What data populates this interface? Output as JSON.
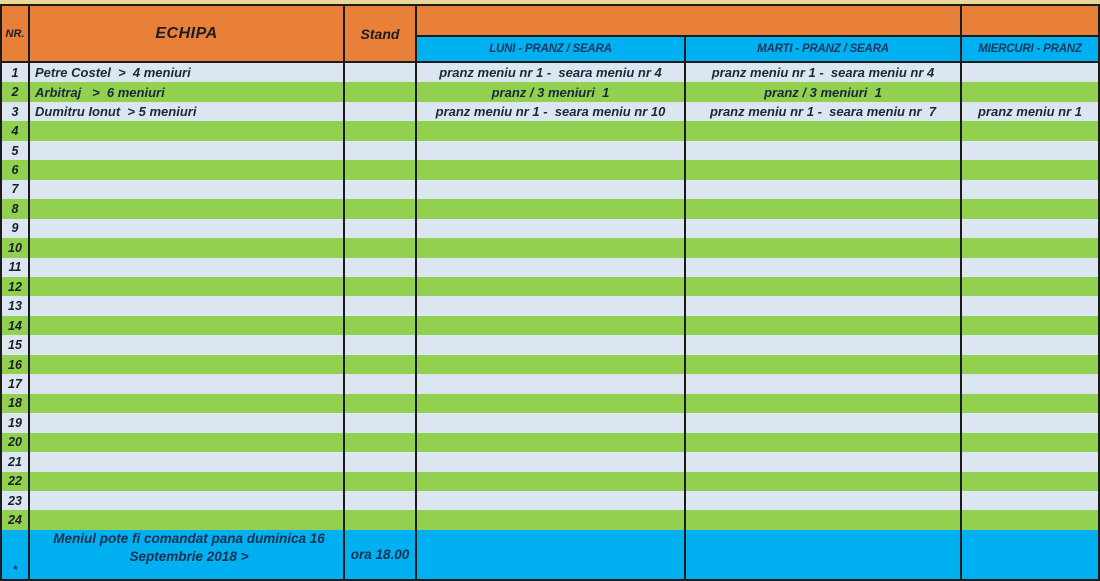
{
  "colors": {
    "header_orange": "#E8803A",
    "day_blue": "#00B0F0",
    "row_green": "#92D050",
    "row_light": "#DCE6F1",
    "top_strip_tan": "#E9D897",
    "border_black": "#1c1c1c",
    "text_navy": "#15304f"
  },
  "header": {
    "nr": "NR.",
    "echipa": "ECHIPA",
    "stand": "Stand",
    "days": {
      "luni": "LUNI - PRANZ / SEARA",
      "marti": "MARTI - PRANZ / SEARA",
      "miercuri": "MIERCURI - PRANZ"
    }
  },
  "rows": [
    {
      "nr": "1",
      "echipa": "Petre Costel  >  4 meniuri",
      "stand": "",
      "luni": "pranz meniu nr 1 -  seara meniu nr 4",
      "marti": "pranz meniu nr 1 -  seara meniu nr 4",
      "miercuri": ""
    },
    {
      "nr": "2",
      "echipa": "Arbitraj   >  6 meniuri",
      "stand": "",
      "luni": "pranz / 3 meniuri  1",
      "marti": "pranz / 3 meniuri  1",
      "miercuri": ""
    },
    {
      "nr": "3",
      "echipa": "Dumitru Ionut  > 5 meniuri",
      "stand": "",
      "luni": "pranz meniu nr 1 -  seara meniu nr 10",
      "marti": "pranz meniu nr 1 -  seara meniu nr  7",
      "miercuri": "pranz meniu nr 1"
    },
    {
      "nr": "4",
      "echipa": "",
      "stand": "",
      "luni": "",
      "marti": "",
      "miercuri": ""
    },
    {
      "nr": "5",
      "echipa": "",
      "stand": "",
      "luni": "",
      "marti": "",
      "miercuri": ""
    },
    {
      "nr": "6",
      "echipa": "",
      "stand": "",
      "luni": "",
      "marti": "",
      "miercuri": ""
    },
    {
      "nr": "7",
      "echipa": "",
      "stand": "",
      "luni": "",
      "marti": "",
      "miercuri": ""
    },
    {
      "nr": "8",
      "echipa": "",
      "stand": "",
      "luni": "",
      "marti": "",
      "miercuri": ""
    },
    {
      "nr": "9",
      "echipa": "",
      "stand": "",
      "luni": "",
      "marti": "",
      "miercuri": ""
    },
    {
      "nr": "10",
      "echipa": "",
      "stand": "",
      "luni": "",
      "marti": "",
      "miercuri": ""
    },
    {
      "nr": "11",
      "echipa": "",
      "stand": "",
      "luni": "",
      "marti": "",
      "miercuri": ""
    },
    {
      "nr": "12",
      "echipa": "",
      "stand": "",
      "luni": "",
      "marti": "",
      "miercuri": ""
    },
    {
      "nr": "13",
      "echipa": "",
      "stand": "",
      "luni": "",
      "marti": "",
      "miercuri": ""
    },
    {
      "nr": "14",
      "echipa": "",
      "stand": "",
      "luni": "",
      "marti": "",
      "miercuri": ""
    },
    {
      "nr": "15",
      "echipa": "",
      "stand": "",
      "luni": "",
      "marti": "",
      "miercuri": ""
    },
    {
      "nr": "16",
      "echipa": "",
      "stand": "",
      "luni": "",
      "marti": "",
      "miercuri": ""
    },
    {
      "nr": "17",
      "echipa": "",
      "stand": "",
      "luni": "",
      "marti": "",
      "miercuri": ""
    },
    {
      "nr": "18",
      "echipa": "",
      "stand": "",
      "luni": "",
      "marti": "",
      "miercuri": ""
    },
    {
      "nr": "19",
      "echipa": "",
      "stand": "",
      "luni": "",
      "marti": "",
      "miercuri": ""
    },
    {
      "nr": "20",
      "echipa": "",
      "stand": "",
      "luni": "",
      "marti": "",
      "miercuri": ""
    },
    {
      "nr": "21",
      "echipa": "",
      "stand": "",
      "luni": "",
      "marti": "",
      "miercuri": ""
    },
    {
      "nr": "22",
      "echipa": "",
      "stand": "",
      "luni": "",
      "marti": "",
      "miercuri": ""
    },
    {
      "nr": "23",
      "echipa": "",
      "stand": "",
      "luni": "",
      "marti": "",
      "miercuri": ""
    },
    {
      "nr": "24",
      "echipa": "",
      "stand": "",
      "luni": "",
      "marti": "",
      "miercuri": ""
    }
  ],
  "footer": {
    "nr": "*",
    "note_line1": "Meniul pote fi comandat pana duminica 16",
    "note_line2": "Septembrie 2018  >",
    "time": "ora 18.00"
  }
}
